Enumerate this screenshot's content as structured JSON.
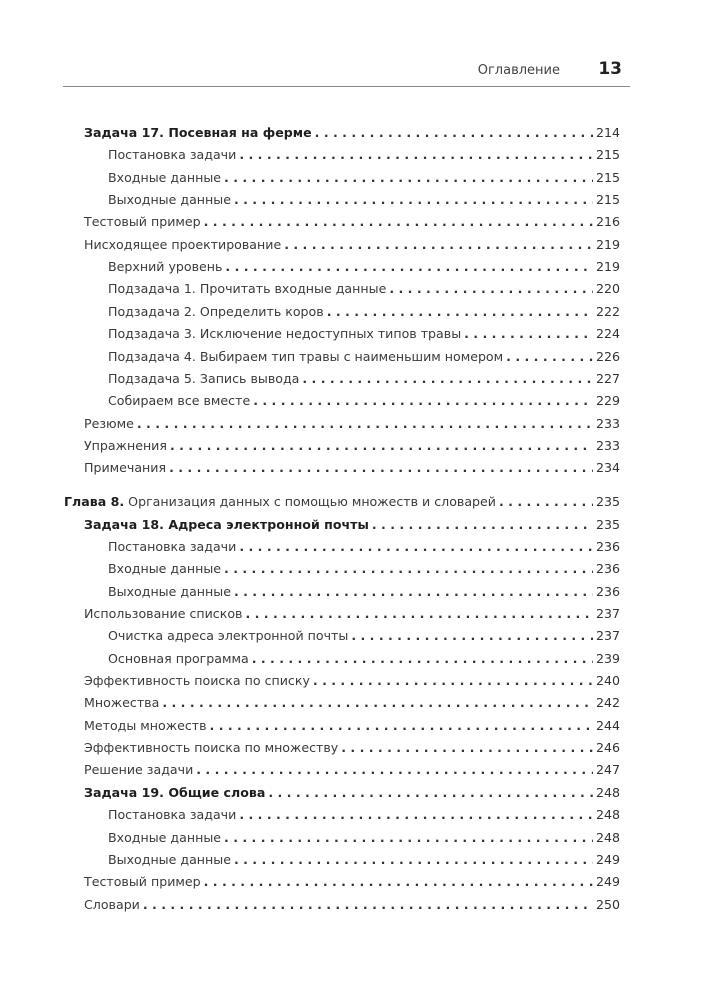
{
  "header": {
    "section": "Оглавление",
    "page_number": "13"
  },
  "entries": [
    {
      "text": "Задача 17. Посевная на ферме",
      "page": "214",
      "level": 0,
      "bold": true
    },
    {
      "text": "Постановка задачи",
      "page": "215",
      "level": 1
    },
    {
      "text": "Входные данные",
      "page": "215",
      "level": 1
    },
    {
      "text": "Выходные данные",
      "page": "215",
      "level": 1
    },
    {
      "text": "Тестовый пример",
      "page": "216",
      "level": 0
    },
    {
      "text": "Нисходящее проектирование",
      "page": "219",
      "level": 0
    },
    {
      "text": "Верхний уровень",
      "page": "219",
      "level": 1
    },
    {
      "text": "Подзадача 1. Прочитать входные данные",
      "page": "220",
      "level": 1
    },
    {
      "text": "Подзадача 2. Определить коров",
      "page": "222",
      "level": 1
    },
    {
      "text": "Подзадача 3. Исключение недоступных типов травы",
      "page": "224",
      "level": 1
    },
    {
      "text": "Подзадача 4. Выбираем тип травы с наименьшим номером",
      "page": "226",
      "level": 1
    },
    {
      "text": "Подзадача 5. Запись вывода",
      "page": "227",
      "level": 1
    },
    {
      "text": "Собираем все вместе",
      "page": "229",
      "level": 1
    },
    {
      "text": "Резюме",
      "page": "233",
      "level": 0
    },
    {
      "text": "Упражнения",
      "page": "233",
      "level": 0
    },
    {
      "text": "Примечания",
      "page": "234",
      "level": 0
    },
    {
      "label": "Глава 8.",
      "text": " Организация данных с помощью множеств и словарей",
      "page": "235",
      "level": "chapter"
    },
    {
      "text": "Задача 18. Адреса электронной почты",
      "page": "235",
      "level": 0,
      "bold": true
    },
    {
      "text": "Постановка задачи",
      "page": "236",
      "level": 1
    },
    {
      "text": "Входные данные",
      "page": "236",
      "level": 1
    },
    {
      "text": "Выходные данные",
      "page": "236",
      "level": 1
    },
    {
      "text": "Использование списков",
      "page": "237",
      "level": 0
    },
    {
      "text": "Очистка адреса электронной почты",
      "page": "237",
      "level": 1
    },
    {
      "text": "Основная программа",
      "page": "239",
      "level": 1
    },
    {
      "text": "Эффективность поиска по списку",
      "page": "240",
      "level": 0
    },
    {
      "text": "Множества",
      "page": "242",
      "level": 0
    },
    {
      "text": "Методы множеств",
      "page": "244",
      "level": 0
    },
    {
      "text": "Эффективность поиска по множеству",
      "page": "246",
      "level": 0
    },
    {
      "text": "Решение задачи",
      "page": "247",
      "level": 0
    },
    {
      "text": "Задача 19. Общие слова",
      "page": "248",
      "level": 0,
      "bold": true
    },
    {
      "text": "Постановка задачи",
      "page": "248",
      "level": 1
    },
    {
      "text": "Входные данные",
      "page": "248",
      "level": 1
    },
    {
      "text": "Выходные данные",
      "page": "249",
      "level": 1
    },
    {
      "text": "Тестовый пример",
      "page": "249",
      "level": 0
    },
    {
      "text": "Словари",
      "page": "250",
      "level": 0
    }
  ]
}
